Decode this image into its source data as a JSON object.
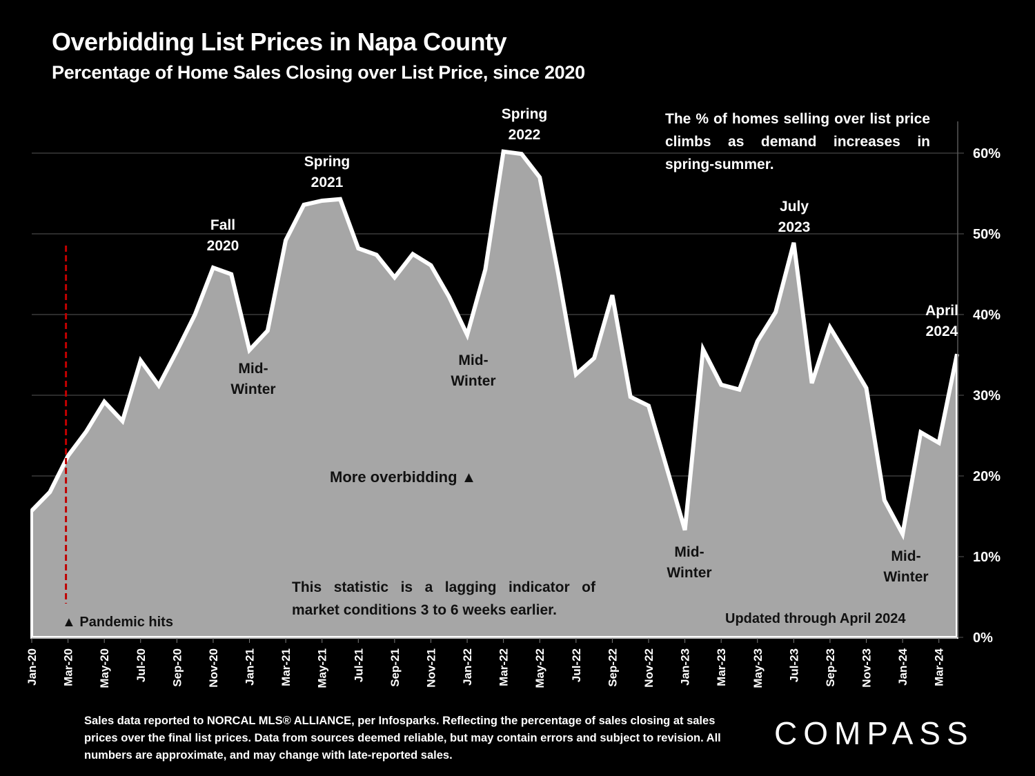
{
  "header": {
    "title": "Overbidding List Prices in Napa County",
    "subtitle": "Percentage of Home Sales Closing over List Price, since 2020"
  },
  "annotations": {
    "fall_2020": [
      "Fall",
      "2020"
    ],
    "spring_2021": [
      "Spring",
      "2021"
    ],
    "spring_2022": [
      "Spring",
      "2022"
    ],
    "july_2023": [
      "July",
      "2023"
    ],
    "april_2024": [
      "April",
      "2024"
    ],
    "mid_winter_1": [
      "Mid-",
      "Winter"
    ],
    "mid_winter_2": [
      "Mid-",
      "Winter"
    ],
    "mid_winter_3": [
      "Mid-",
      "Winter"
    ],
    "mid_winter_4": [
      "Mid-",
      "Winter"
    ],
    "demand_note": "The % of homes selling over list price climbs as demand increases in spring-summer.",
    "lagging_note": "This statistic is a lagging indicator of market conditions 3 to 6 weeks earlier.",
    "updated_note": "Updated through April 2024",
    "pandemic_note": "▲ Pandemic hits",
    "more_overbidding": "More overbidding ▲"
  },
  "footer": {
    "source": "Sales data reported to NORCAL MLS® ALLIANCE, per Infosparks. Reflecting the percentage of sales closing at sales prices over the final list prices. Data from sources deemed reliable, but may contain errors and subject to revision. All numbers are approximate, and may change with late-reported sales.",
    "logo": "COMPASS"
  },
  "colors": {
    "background": "#000000",
    "area_fill": "#a6a6a6",
    "line": "#ffffff",
    "pandemic_marker": "#c00000",
    "gridline": "#595959"
  },
  "chart_data": {
    "type": "area",
    "title": "Overbidding List Prices in Napa County",
    "subtitle": "Percentage of Home Sales Closing over List Price, since 2020",
    "xlabel": "",
    "ylabel": "",
    "ylim": [
      0,
      60
    ],
    "y_ticks": [
      "0%",
      "10%",
      "20%",
      "30%",
      "40%",
      "50%",
      "60%"
    ],
    "y_axis_side": "right",
    "grid": true,
    "x_tick_labels": [
      "Jan-20",
      "Mar-20",
      "May-20",
      "Jul-20",
      "Sep-20",
      "Nov-20",
      "Jan-21",
      "Mar-21",
      "May-21",
      "Jul-21",
      "Sep-21",
      "Nov-21",
      "Jan-22",
      "Mar-22",
      "May-22",
      "Jul-22",
      "Sep-22",
      "Nov-22",
      "Jan-23",
      "Mar-23",
      "May-23",
      "Jul-23",
      "Sep-23",
      "Nov-23",
      "Jan-24",
      "Mar-24"
    ],
    "x": [
      "Jan-20",
      "Feb-20",
      "Mar-20",
      "Apr-20",
      "May-20",
      "Jun-20",
      "Jul-20",
      "Aug-20",
      "Sep-20",
      "Oct-20",
      "Nov-20",
      "Dec-20",
      "Jan-21",
      "Feb-21",
      "Mar-21",
      "Apr-21",
      "May-21",
      "Jun-21",
      "Jul-21",
      "Aug-21",
      "Sep-21",
      "Oct-21",
      "Nov-21",
      "Dec-21",
      "Jan-22",
      "Feb-22",
      "Mar-22",
      "Apr-22",
      "May-22",
      "Jun-22",
      "Jul-22",
      "Aug-22",
      "Sep-22",
      "Oct-22",
      "Nov-22",
      "Dec-22",
      "Jan-23",
      "Feb-23",
      "Mar-23",
      "Apr-23",
      "May-23",
      "Jun-23",
      "Jul-23",
      "Aug-23",
      "Sep-23",
      "Oct-23",
      "Nov-23",
      "Dec-23",
      "Jan-24",
      "Feb-24",
      "Mar-24",
      "Apr-24"
    ],
    "series": [
      {
        "name": "% of sales closing over list price",
        "values": [
          15.7,
          18.0,
          22.5,
          25.5,
          29.2,
          26.8,
          34.3,
          31.2,
          35.5,
          40.0,
          45.8,
          45.0,
          35.6,
          38.0,
          49.2,
          53.6,
          54.1,
          54.3,
          48.2,
          47.4,
          44.6,
          47.5,
          46.1,
          42.2,
          37.5,
          45.6,
          60.2,
          59.9,
          57.0,
          45.3,
          32.6,
          34.6,
          42.4,
          29.8,
          28.7,
          21.0,
          13.3,
          35.7,
          31.3,
          30.7,
          36.7,
          40.3,
          48.9,
          31.5,
          38.4,
          34.7,
          30.9,
          17.0,
          12.8,
          25.4,
          24.1,
          35.1
        ]
      }
    ],
    "event_marker": {
      "label": "Pandemic hits",
      "x": "Mar-20"
    }
  }
}
